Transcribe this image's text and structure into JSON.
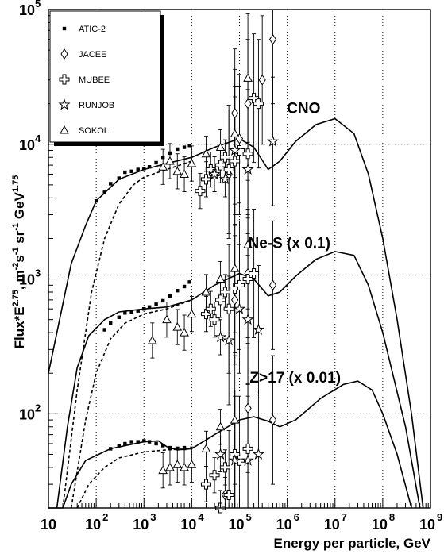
{
  "chart_data": {
    "type": "scatter",
    "title": "",
    "xlabel": "Energy per particle, GeV",
    "ylabel_parts": [
      "Flux*E",
      "2.75",
      ", m",
      "-2",
      "s",
      "-1",
      " sr",
      "-1",
      " GeV",
      "1.75"
    ],
    "x_scale": "log",
    "y_scale": "log",
    "xlim": [
      10,
      1000000000
    ],
    "ylim": [
      20,
      100000
    ],
    "grid": true,
    "legend_position": "top-left",
    "x_ticks": [
      {
        "base": "10",
        "exp": ""
      },
      {
        "base": "10",
        "exp": "2"
      },
      {
        "base": "10",
        "exp": "3"
      },
      {
        "base": "10",
        "exp": "4"
      },
      {
        "base": "10",
        "exp": "5"
      },
      {
        "base": "10",
        "exp": "6"
      },
      {
        "base": "10",
        "exp": "7"
      },
      {
        "base": "10",
        "exp": "8"
      },
      {
        "base": "10",
        "exp": "9"
      }
    ],
    "y_ticks": [
      {
        "base": "10",
        "exp": "2",
        "value": 100
      },
      {
        "base": "10",
        "exp": "3",
        "value": 1000
      },
      {
        "base": "10",
        "exp": "4",
        "value": 10000
      },
      {
        "base": "10",
        "exp": "5",
        "value": 100000
      }
    ],
    "group_labels": [
      {
        "text": "CNO",
        "x": 3000000,
        "y": 17000
      },
      {
        "text": "Ne-S (x 0.1)",
        "x": 1500000,
        "y": 1700
      },
      {
        "text": "Z>17 (x 0.01)",
        "x": 2000000,
        "y": 170
      }
    ],
    "legend": [
      {
        "name": "ATIC-2",
        "marker": "square"
      },
      {
        "name": "JACEE",
        "marker": "diamond"
      },
      {
        "name": "MUBEE",
        "marker": "cross"
      },
      {
        "name": "RUNJOB",
        "marker": "star"
      },
      {
        "name": "SOKOL",
        "marker": "triangle"
      }
    ],
    "curves": [
      {
        "group": "CNO",
        "style": "solid",
        "points": [
          [
            10,
            200
          ],
          [
            30,
            1300
          ],
          [
            60,
            2500
          ],
          [
            100,
            3800
          ],
          [
            300,
            5500
          ],
          [
            1000,
            6500
          ],
          [
            3000,
            7200
          ],
          [
            10000,
            8000
          ],
          [
            30000,
            9500
          ],
          [
            100000,
            11000
          ],
          [
            200000,
            9500
          ],
          [
            400000,
            6500
          ],
          [
            700000,
            7500
          ],
          [
            1500000,
            10500
          ],
          [
            4000000,
            14000
          ],
          [
            10000000,
            15500
          ],
          [
            25000000,
            12000
          ],
          [
            50000000,
            6000
          ],
          [
            100000000,
            2000
          ],
          [
            200000000,
            500
          ],
          [
            400000000,
            100
          ],
          [
            700000000,
            20
          ]
        ]
      },
      {
        "group": "CNO",
        "style": "dashed",
        "points": [
          [
            20,
            20
          ],
          [
            40,
            150
          ],
          [
            80,
            800
          ],
          [
            150,
            2000
          ],
          [
            300,
            3600
          ],
          [
            600,
            5000
          ],
          [
            1000,
            5700
          ],
          [
            3000,
            6500
          ],
          [
            10000,
            7500
          ]
        ]
      },
      {
        "group": "Ne-S",
        "style": "solid",
        "points": [
          [
            15,
            20
          ],
          [
            25,
            80
          ],
          [
            40,
            220
          ],
          [
            70,
            380
          ],
          [
            150,
            500
          ],
          [
            300,
            570
          ],
          [
            1000,
            600
          ],
          [
            3000,
            620
          ],
          [
            10000,
            700
          ],
          [
            30000,
            900
          ],
          [
            100000,
            1100
          ],
          [
            200000,
            1000
          ],
          [
            400000,
            750
          ],
          [
            700000,
            800
          ],
          [
            1500000,
            1050
          ],
          [
            4000000,
            1400
          ],
          [
            10000000,
            1600
          ],
          [
            25000000,
            1500
          ],
          [
            50000000,
            900
          ],
          [
            100000000,
            400
          ],
          [
            300000000,
            80
          ],
          [
            600000000,
            20
          ]
        ]
      },
      {
        "group": "Ne-S",
        "style": "dashed",
        "points": [
          [
            30,
            20
          ],
          [
            60,
            90
          ],
          [
            100,
            200
          ],
          [
            200,
            360
          ],
          [
            400,
            470
          ],
          [
            1000,
            550
          ],
          [
            3000,
            600
          ],
          [
            10000,
            700
          ]
        ]
      },
      {
        "group": "Z>17",
        "style": "solid",
        "points": [
          [
            10,
            20
          ],
          [
            20,
            20
          ],
          [
            30,
            30
          ],
          [
            60,
            45
          ],
          [
            200,
            55
          ],
          [
            1000,
            62
          ],
          [
            2000,
            63
          ],
          [
            3000,
            57
          ],
          [
            5000,
            54
          ],
          [
            10000,
            55
          ],
          [
            30000,
            70
          ],
          [
            100000,
            90
          ],
          [
            200000,
            95
          ],
          [
            400000,
            88
          ],
          [
            700000,
            80
          ],
          [
            1500000,
            90
          ],
          [
            5000000,
            130
          ],
          [
            15000000,
            165
          ],
          [
            30000000,
            175
          ],
          [
            60000000,
            150
          ],
          [
            100000000,
            100
          ],
          [
            200000000,
            50
          ],
          [
            400000000,
            20
          ]
        ]
      },
      {
        "group": "Z>17",
        "style": "dashed",
        "points": [
          [
            40,
            20
          ],
          [
            70,
            30
          ],
          [
            150,
            40
          ],
          [
            300,
            47
          ],
          [
            1000,
            52
          ],
          [
            3000,
            54
          ],
          [
            10000,
            55
          ]
        ]
      }
    ],
    "series": [
      {
        "name": "ATIC-2",
        "marker": "square",
        "points": [
          [
            100,
            3800
          ],
          [
            150,
            4400
          ],
          [
            200,
            5100
          ],
          [
            300,
            5600
          ],
          [
            400,
            6200
          ],
          [
            550,
            6300
          ],
          [
            750,
            6500
          ],
          [
            1000,
            6600
          ],
          [
            1300,
            6800
          ],
          [
            1800,
            7300
          ],
          [
            2500,
            8000
          ],
          [
            3500,
            8600
          ],
          [
            5000,
            9200
          ],
          [
            7000,
            9500
          ],
          [
            9000,
            9800
          ],
          [
            150,
            420
          ],
          [
            200,
            470
          ],
          [
            300,
            520
          ],
          [
            400,
            560
          ],
          [
            550,
            570
          ],
          [
            750,
            580
          ],
          [
            1000,
            600
          ],
          [
            1300,
            620
          ],
          [
            1800,
            650
          ],
          [
            2500,
            690
          ],
          [
            3500,
            750
          ],
          [
            5000,
            820
          ],
          [
            7000,
            880
          ],
          [
            9000,
            950
          ],
          [
            200,
            55
          ],
          [
            300,
            58
          ],
          [
            400,
            60
          ],
          [
            550,
            62
          ],
          [
            750,
            62
          ],
          [
            1000,
            63
          ],
          [
            1300,
            62
          ],
          [
            1800,
            60
          ],
          [
            2500,
            58
          ],
          [
            3500,
            56
          ],
          [
            5000,
            55
          ],
          [
            7000,
            56
          ]
        ]
      },
      {
        "name": "JACEE",
        "marker": "diamond",
        "points": [
          [
            60000,
            6000
          ],
          [
            80000,
            17000
          ],
          [
            100000,
            11000
          ],
          [
            150000,
            20000
          ],
          [
            300000,
            30000
          ],
          [
            500000,
            60000
          ],
          [
            80000,
            700
          ],
          [
            150000,
            1100
          ],
          [
            500000,
            900
          ],
          [
            50000,
            25
          ],
          [
            80000,
            50
          ],
          [
            150000,
            110
          ],
          [
            500000,
            90
          ]
        ]
      },
      {
        "name": "MUBEE",
        "marker": "cross",
        "points": [
          [
            15000,
            4500
          ],
          [
            20000,
            5500
          ],
          [
            25000,
            6500
          ],
          [
            30000,
            6000
          ],
          [
            40000,
            7000
          ],
          [
            50000,
            8000
          ],
          [
            60000,
            6500
          ],
          [
            80000,
            7500
          ],
          [
            100000,
            9000
          ],
          [
            150000,
            8500
          ],
          [
            200000,
            22000
          ],
          [
            250000,
            20000
          ],
          [
            20000,
            550
          ],
          [
            25000,
            600
          ],
          [
            30000,
            500
          ],
          [
            40000,
            700
          ],
          [
            50000,
            800
          ],
          [
            60000,
            600
          ],
          [
            80000,
            850
          ],
          [
            100000,
            900
          ],
          [
            150000,
            1000
          ],
          [
            200000,
            1100
          ],
          [
            20000,
            30
          ],
          [
            30000,
            35
          ],
          [
            40000,
            20
          ],
          [
            50000,
            40
          ],
          [
            60000,
            25
          ],
          [
            80000,
            50
          ],
          [
            100000,
            45
          ],
          [
            150000,
            55
          ]
        ]
      },
      {
        "name": "RUNJOB",
        "marker": "star",
        "points": [
          [
            30000,
            6000
          ],
          [
            50000,
            5500
          ],
          [
            80000,
            9000
          ],
          [
            150000,
            6500
          ],
          [
            500000,
            10500
          ],
          [
            40000,
            370
          ],
          [
            60000,
            350
          ],
          [
            100000,
            600
          ],
          [
            150000,
            500
          ],
          [
            250000,
            420
          ],
          [
            40000,
            50
          ],
          [
            80000,
            45
          ],
          [
            150000,
            45
          ],
          [
            250000,
            50
          ]
        ]
      },
      {
        "name": "SOKOL",
        "marker": "triangle",
        "points": [
          [
            2500,
            6800
          ],
          [
            3500,
            7500
          ],
          [
            5000,
            6300
          ],
          [
            7000,
            6000
          ],
          [
            10000,
            7200
          ],
          [
            20000,
            8500
          ],
          [
            40000,
            9500
          ],
          [
            80000,
            12000
          ],
          [
            150000,
            31000
          ],
          [
            1500,
            350
          ],
          [
            3000,
            500
          ],
          [
            5000,
            440
          ],
          [
            7000,
            400
          ],
          [
            10000,
            550
          ],
          [
            20000,
            800
          ],
          [
            40000,
            1000
          ],
          [
            80000,
            1200
          ],
          [
            150000,
            1800
          ],
          [
            2500,
            38
          ],
          [
            3500,
            40
          ],
          [
            5000,
            42
          ],
          [
            7000,
            40
          ],
          [
            10000,
            42
          ],
          [
            20000,
            55
          ],
          [
            40000,
            80
          ],
          [
            80000,
            90
          ]
        ]
      }
    ]
  }
}
